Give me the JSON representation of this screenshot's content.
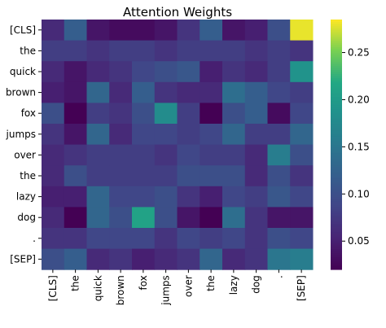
{
  "chart_data": {
    "type": "heatmap",
    "title": "Attention Weights",
    "x_labels": [
      "[CLS]",
      "the",
      "quick",
      "brown",
      "fox",
      "jumps",
      "over",
      "the",
      "lazy",
      "dog",
      ".",
      "[SEP]"
    ],
    "y_labels": [
      "[CLS]",
      "the",
      "quick",
      "brown",
      "fox",
      "jumps",
      "over",
      "the",
      "lazy",
      "dog",
      ".",
      "[SEP]"
    ],
    "values": [
      [
        0.06,
        0.12,
        0.04,
        0.03,
        0.03,
        0.04,
        0.07,
        0.12,
        0.04,
        0.05,
        0.1,
        0.28
      ],
      [
        0.08,
        0.08,
        0.07,
        0.08,
        0.08,
        0.07,
        0.08,
        0.08,
        0.08,
        0.07,
        0.08,
        0.07
      ],
      [
        0.06,
        0.04,
        0.06,
        0.07,
        0.09,
        0.1,
        0.11,
        0.05,
        0.07,
        0.06,
        0.08,
        0.19
      ],
      [
        0.05,
        0.04,
        0.13,
        0.06,
        0.12,
        0.07,
        0.06,
        0.06,
        0.14,
        0.12,
        0.09,
        0.08
      ],
      [
        0.1,
        0.02,
        0.08,
        0.07,
        0.1,
        0.18,
        0.08,
        0.02,
        0.1,
        0.12,
        0.03,
        0.09
      ],
      [
        0.07,
        0.04,
        0.13,
        0.06,
        0.09,
        0.09,
        0.08,
        0.09,
        0.13,
        0.08,
        0.08,
        0.13
      ],
      [
        0.06,
        0.07,
        0.08,
        0.08,
        0.08,
        0.07,
        0.09,
        0.08,
        0.08,
        0.06,
        0.16,
        0.1
      ],
      [
        0.06,
        0.1,
        0.08,
        0.08,
        0.08,
        0.08,
        0.1,
        0.1,
        0.1,
        0.06,
        0.1,
        0.07
      ],
      [
        0.05,
        0.05,
        0.13,
        0.09,
        0.09,
        0.1,
        0.07,
        0.05,
        0.09,
        0.08,
        0.11,
        0.09
      ],
      [
        0.06,
        0.02,
        0.13,
        0.1,
        0.21,
        0.1,
        0.04,
        0.02,
        0.14,
        0.07,
        0.04,
        0.04
      ],
      [
        0.07,
        0.07,
        0.09,
        0.09,
        0.09,
        0.07,
        0.09,
        0.08,
        0.09,
        0.07,
        0.1,
        0.09
      ],
      [
        0.1,
        0.12,
        0.06,
        0.07,
        0.05,
        0.06,
        0.07,
        0.13,
        0.06,
        0.07,
        0.15,
        0.16
      ]
    ],
    "colorbar": {
      "colormap": "viridis",
      "ticks": [
        0.05,
        0.1,
        0.15,
        0.2,
        0.25
      ],
      "range": [
        0.02,
        0.285
      ]
    }
  }
}
